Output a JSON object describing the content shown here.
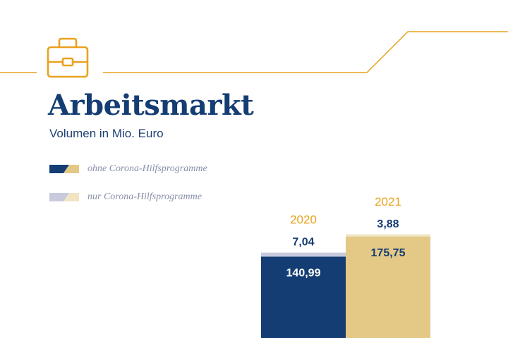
{
  "title": "Arbeitsmarkt",
  "subtitle": "Volumen in Mio. Euro",
  "icon": "briefcase-icon",
  "colors": {
    "accent": "#e9a21f",
    "navy": "#143d73",
    "gold": "#e3c985",
    "lavender": "#c7c9dd",
    "cream": "#f0e4c2"
  },
  "chart_data": {
    "type": "bar",
    "stacked": true,
    "categories": [
      "2020",
      "2021"
    ],
    "series": [
      {
        "name": "ohne Corona-Hilfsprogramme",
        "values": [
          140.99,
          175.75
        ],
        "labels": [
          "140,99",
          "175,75"
        ]
      },
      {
        "name": "nur Corona-Hilfsprogramme",
        "values": [
          7.04,
          3.88
        ],
        "labels": [
          "7,04",
          "3,88"
        ]
      }
    ],
    "legend": "top-left",
    "grid": false
  }
}
